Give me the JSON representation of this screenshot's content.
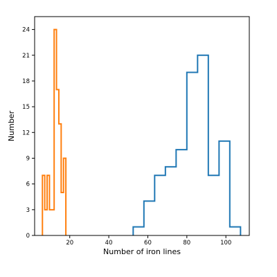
{
  "chart_data": {
    "type": "histogram",
    "title": "",
    "xlabel": "Number of iron lines",
    "ylabel": "Number",
    "xlim": [
      2,
      112
    ],
    "ylim": [
      0,
      25.5
    ],
    "xticks": [
      20,
      40,
      60,
      80,
      100
    ],
    "yticks": [
      0,
      3,
      6,
      9,
      12,
      15,
      18,
      21,
      24
    ],
    "grid": false,
    "legend": false,
    "series": [
      {
        "color": "#1f77b4",
        "style": "step",
        "bins": [
          {
            "x0": 52.5,
            "x1": 58.0,
            "count": 1
          },
          {
            "x0": 58.0,
            "x1": 63.5,
            "count": 4
          },
          {
            "x0": 63.5,
            "x1": 69.0,
            "count": 7
          },
          {
            "x0": 69.0,
            "x1": 74.5,
            "count": 8
          },
          {
            "x0": 74.5,
            "x1": 80.0,
            "count": 10
          },
          {
            "x0": 80.0,
            "x1": 85.5,
            "count": 19
          },
          {
            "x0": 85.5,
            "x1": 91.0,
            "count": 21
          },
          {
            "x0": 91.0,
            "x1": 96.5,
            "count": 7
          },
          {
            "x0": 96.5,
            "x1": 102.0,
            "count": 11
          },
          {
            "x0": 102.0,
            "x1": 107.5,
            "count": 1
          }
        ]
      },
      {
        "color": "#ff7f0e",
        "style": "step",
        "bins": [
          {
            "x0": 6.0,
            "x1": 7.2,
            "count": 7
          },
          {
            "x0": 7.2,
            "x1": 8.4,
            "count": 3
          },
          {
            "x0": 8.4,
            "x1": 9.6,
            "count": 7
          },
          {
            "x0": 9.6,
            "x1": 10.8,
            "count": 3
          },
          {
            "x0": 10.8,
            "x1": 12.0,
            "count": 3
          },
          {
            "x0": 12.0,
            "x1": 13.2,
            "count": 24
          },
          {
            "x0": 13.2,
            "x1": 14.4,
            "count": 17
          },
          {
            "x0": 14.4,
            "x1": 15.6,
            "count": 13
          },
          {
            "x0": 15.6,
            "x1": 16.8,
            "count": 5
          },
          {
            "x0": 16.8,
            "x1": 18.0,
            "count": 9
          }
        ]
      }
    ]
  }
}
